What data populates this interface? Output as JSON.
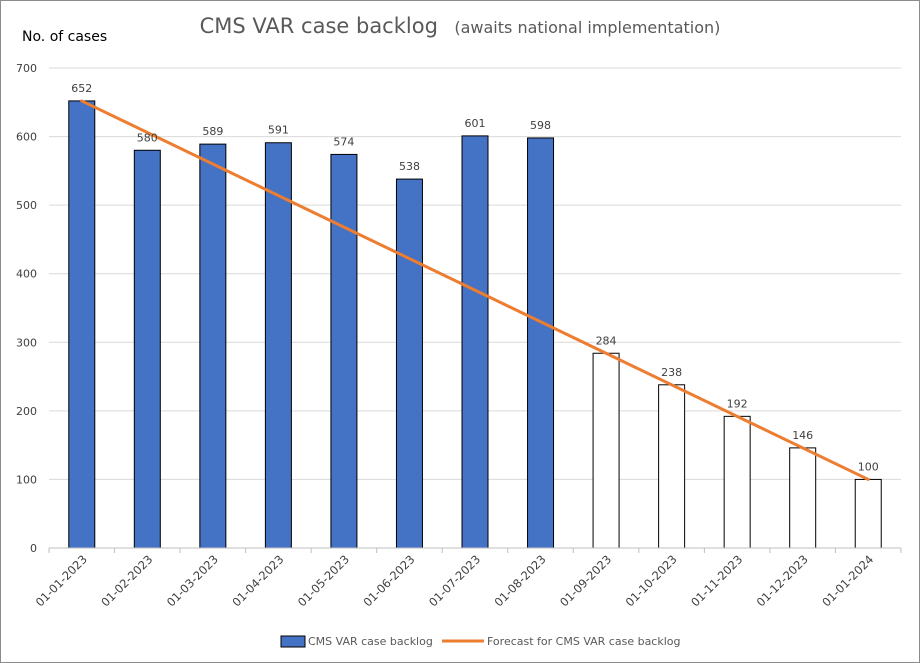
{
  "chart_data": {
    "type": "bar",
    "title": "CMS VAR case backlog",
    "subtitle": "(awaits national implementation)",
    "xlabel": "",
    "ylabel": "No. of cases",
    "ylim": [
      0,
      700
    ],
    "yticks": [
      0,
      100,
      200,
      300,
      400,
      500,
      600,
      700
    ],
    "grid": true,
    "legend_position": "bottom",
    "categories": [
      "01-01-2023",
      "01-02-2023",
      "01-03-2023",
      "01-04-2023",
      "01-05-2023",
      "01-06-2023",
      "01-07-2023",
      "01-08-2023",
      "01-09-2023",
      "01-10-2023",
      "01-11-2023",
      "01-12-2023",
      "01-01-2024"
    ],
    "series": [
      {
        "name": "CMS VAR case backlog",
        "type": "bar",
        "color": "#4472C4",
        "forecast_fill": "#ffffff",
        "values": [
          652,
          580,
          589,
          591,
          574,
          538,
          601,
          598,
          284,
          238,
          192,
          146,
          100
        ],
        "filled": [
          true,
          true,
          true,
          true,
          true,
          true,
          true,
          true,
          false,
          false,
          false,
          false,
          false
        ]
      },
      {
        "name": "Forecast for CMS VAR case backlog",
        "type": "line",
        "color": "#ED7D31",
        "start": {
          "category": "01-01-2023",
          "value": 652
        },
        "end": {
          "category": "01-01-2024",
          "value": 100
        }
      }
    ]
  }
}
